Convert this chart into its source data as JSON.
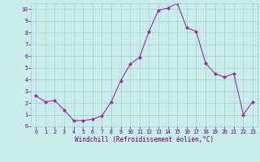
{
  "x": [
    0,
    1,
    2,
    3,
    4,
    5,
    6,
    7,
    8,
    9,
    10,
    11,
    12,
    13,
    14,
    15,
    16,
    17,
    18,
    19,
    20,
    21,
    22,
    23
  ],
  "y": [
    2.6,
    2.1,
    2.2,
    1.4,
    0.5,
    0.5,
    0.6,
    0.9,
    2.1,
    3.9,
    5.3,
    5.9,
    8.1,
    9.9,
    10.1,
    10.5,
    8.4,
    8.1,
    5.4,
    4.5,
    4.2,
    4.5,
    1.0,
    2.1
  ],
  "line_color": "#993399",
  "marker": "D",
  "markersize": 2.0,
  "bg_color": "#c8ecec",
  "grid_color": "#aacccc",
  "xlabel": "Windchill (Refroidissement éolien,°C)",
  "ylim": [
    0,
    10.5
  ],
  "xlim": [
    -0.5,
    23.5
  ],
  "xtick_labels": [
    "0",
    "1",
    "2",
    "3",
    "4",
    "5",
    "6",
    "7",
    "8",
    "9",
    "10",
    "11",
    "12",
    "13",
    "14",
    "15",
    "16",
    "17",
    "18",
    "19",
    "20",
    "21",
    "22",
    "23"
  ],
  "ytick_labels": [
    "0",
    "1",
    "2",
    "3",
    "4",
    "5",
    "6",
    "7",
    "8",
    "9",
    "10"
  ],
  "label_fontsize": 5.5,
  "tick_fontsize": 4.8,
  "linewidth": 0.8
}
